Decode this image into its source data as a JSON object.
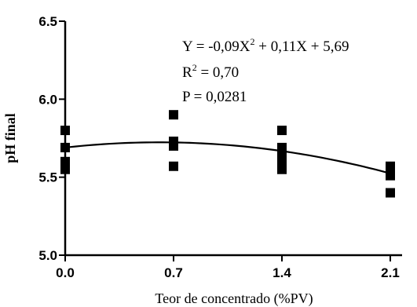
{
  "chart_data": {
    "type": "scatter",
    "xlabel": "Teor de concentrado (%PV)",
    "ylabel": "pH final",
    "xlim": [
      0,
      2.1
    ],
    "ylim": [
      5.0,
      6.5
    ],
    "x_ticks": [
      "0.0",
      "0.7",
      "1.4",
      "2.1"
    ],
    "y_ticks": [
      "5.0",
      "5.5",
      "6.0",
      "6.5"
    ],
    "grid": false,
    "points": [
      {
        "x": 0.0,
        "y": 5.8
      },
      {
        "x": 0.0,
        "y": 5.69
      },
      {
        "x": 0.0,
        "y": 5.6
      },
      {
        "x": 0.0,
        "y": 5.58
      },
      {
        "x": 0.0,
        "y": 5.55
      },
      {
        "x": 0.7,
        "y": 5.9
      },
      {
        "x": 0.7,
        "y": 5.73
      },
      {
        "x": 0.7,
        "y": 5.7
      },
      {
        "x": 0.7,
        "y": 5.57
      },
      {
        "x": 1.4,
        "y": 5.8
      },
      {
        "x": 1.4,
        "y": 5.69
      },
      {
        "x": 1.4,
        "y": 5.64
      },
      {
        "x": 1.4,
        "y": 5.6
      },
      {
        "x": 1.4,
        "y": 5.55
      },
      {
        "x": 2.1,
        "y": 5.57
      },
      {
        "x": 2.1,
        "y": 5.54
      },
      {
        "x": 2.1,
        "y": 5.51
      },
      {
        "x": 2.1,
        "y": 5.4
      }
    ],
    "fit": {
      "a": -0.09,
      "b": 0.11,
      "c": 5.69
    },
    "annotation": {
      "eq_prefix": "Y  = -0,09X",
      "eq_sup": "2",
      "eq_suffix": " + 0,11X + 5,69",
      "r2_prefix": "R",
      "r2_sup": "2",
      "r2_suffix": " = 0,70",
      "p_line": "P = 0,0281"
    }
  }
}
